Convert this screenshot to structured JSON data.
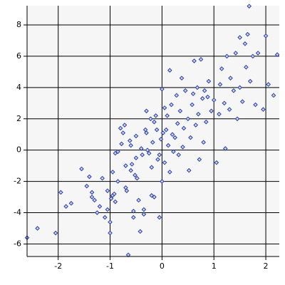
{
  "chart_data": {
    "type": "scatter",
    "color": "#2b3fa6",
    "xlim": [
      -2.6,
      2.26
    ],
    "ylim": [
      -6.8,
      9.23
    ],
    "xticks": [
      -2,
      -1,
      0,
      1,
      2
    ],
    "yticks": [
      -6,
      -4,
      -2,
      0,
      2,
      4,
      6,
      8
    ],
    "grid": true,
    "x": [
      -2.6,
      -2.4,
      -2.05,
      -1.95,
      -1.85,
      -1.75,
      -1.55,
      -1.45,
      -1.4,
      -1.35,
      -1.35,
      -1.3,
      -1.25,
      -1.2,
      -1.15,
      -1.1,
      -1.05,
      -1.05,
      -1.0,
      -1.0,
      -0.98,
      -0.95,
      -0.95,
      -0.92,
      -0.9,
      -0.85,
      -0.9,
      -0.85,
      -0.8,
      -0.78,
      -0.75,
      -0.72,
      -0.7,
      -0.7,
      -0.68,
      -0.65,
      -0.62,
      -0.6,
      -0.6,
      -0.58,
      -0.55,
      -0.55,
      -0.52,
      -0.5,
      -0.5,
      -0.48,
      -0.45,
      -0.42,
      -0.4,
      -0.38,
      -0.35,
      -0.35,
      -0.32,
      -0.3,
      -0.3,
      -0.28,
      -0.25,
      -0.22,
      -0.2,
      -0.2,
      -0.18,
      -0.15,
      -0.15,
      -0.12,
      -0.1,
      -0.08,
      -0.05,
      -0.05,
      -0.02,
      0.0,
      0.0,
      0.02,
      0.05,
      0.05,
      0.08,
      0.1,
      0.12,
      0.15,
      0.15,
      0.18,
      0.2,
      0.22,
      0.25,
      0.28,
      0.3,
      0.32,
      0.35,
      0.38,
      0.4,
      0.42,
      0.45,
      0.5,
      0.52,
      0.55,
      0.58,
      0.6,
      0.62,
      0.65,
      0.68,
      0.7,
      0.72,
      0.75,
      0.78,
      0.8,
      0.82,
      0.85,
      0.88,
      0.9,
      0.95,
      1.0,
      1.05,
      1.1,
      1.12,
      1.15,
      1.2,
      1.22,
      1.25,
      1.3,
      1.32,
      1.38,
      1.42,
      1.45,
      1.5,
      1.5,
      1.55,
      1.6,
      1.62,
      1.65,
      1.68,
      1.7,
      1.75,
      1.8,
      1.85,
      1.95,
      2.0,
      2.05,
      2.15,
      2.22
    ],
    "y": [
      -5.6,
      -5.0,
      -5.3,
      -2.7,
      -3.6,
      -3.4,
      -1.2,
      -2.3,
      -1.7,
      -2.7,
      -3.0,
      -3.2,
      -4.0,
      -3.6,
      -1.8,
      -4.3,
      -3.8,
      -2.6,
      -5.3,
      -4.6,
      -3.1,
      -2.9,
      -1.4,
      -2.8,
      -0.2,
      -0.1,
      -3.3,
      -2.0,
      1.4,
      0.4,
      1.1,
      1.6,
      -1.0,
      -2.4,
      -2.6,
      -6.7,
      0.6,
      0.3,
      -1.3,
      -0.9,
      -3.9,
      -4.3,
      -1.6,
      0.9,
      -0.5,
      -1.8,
      -3.2,
      -5.2,
      0.1,
      -0.3,
      -4.1,
      -3.8,
      1.3,
      1.1,
      2.5,
      0.0,
      -0.2,
      2.0,
      -1.1,
      -2.9,
      0.5,
      -3.0,
      1.8,
      2.2,
      1.3,
      -0.6,
      -0.3,
      -4.3,
      0.7,
      3.9,
      -2.0,
      1.1,
      2.7,
      -0.8,
      1.3,
      2.2,
      0.3,
      5.1,
      -1.4,
      2.9,
      1.0,
      -0.1,
      0.8,
      3.5,
      1.7,
      -0.3,
      2.5,
      4.6,
      0.2,
      1.4,
      3.8,
      2.0,
      -1.3,
      0.8,
      2.9,
      3.6,
      5.7,
      1.6,
      4.0,
      2.3,
      -0.6,
      5.8,
      3.3,
      0.5,
      3.8,
      1.8,
      3.4,
      4.4,
      2.5,
      3.2,
      -0.8,
      2.3,
      4.2,
      5.2,
      3.0,
      0.1,
      6.0,
      2.6,
      4.6,
      3.8,
      6.2,
      2.0,
      7.2,
      4.0,
      3.1,
      6.8,
      5.3,
      7.4,
      9.2,
      4.4,
      6.0,
      2.9,
      6.2,
      2.6,
      7.3,
      4.2,
      3.5,
      6.1
    ]
  }
}
